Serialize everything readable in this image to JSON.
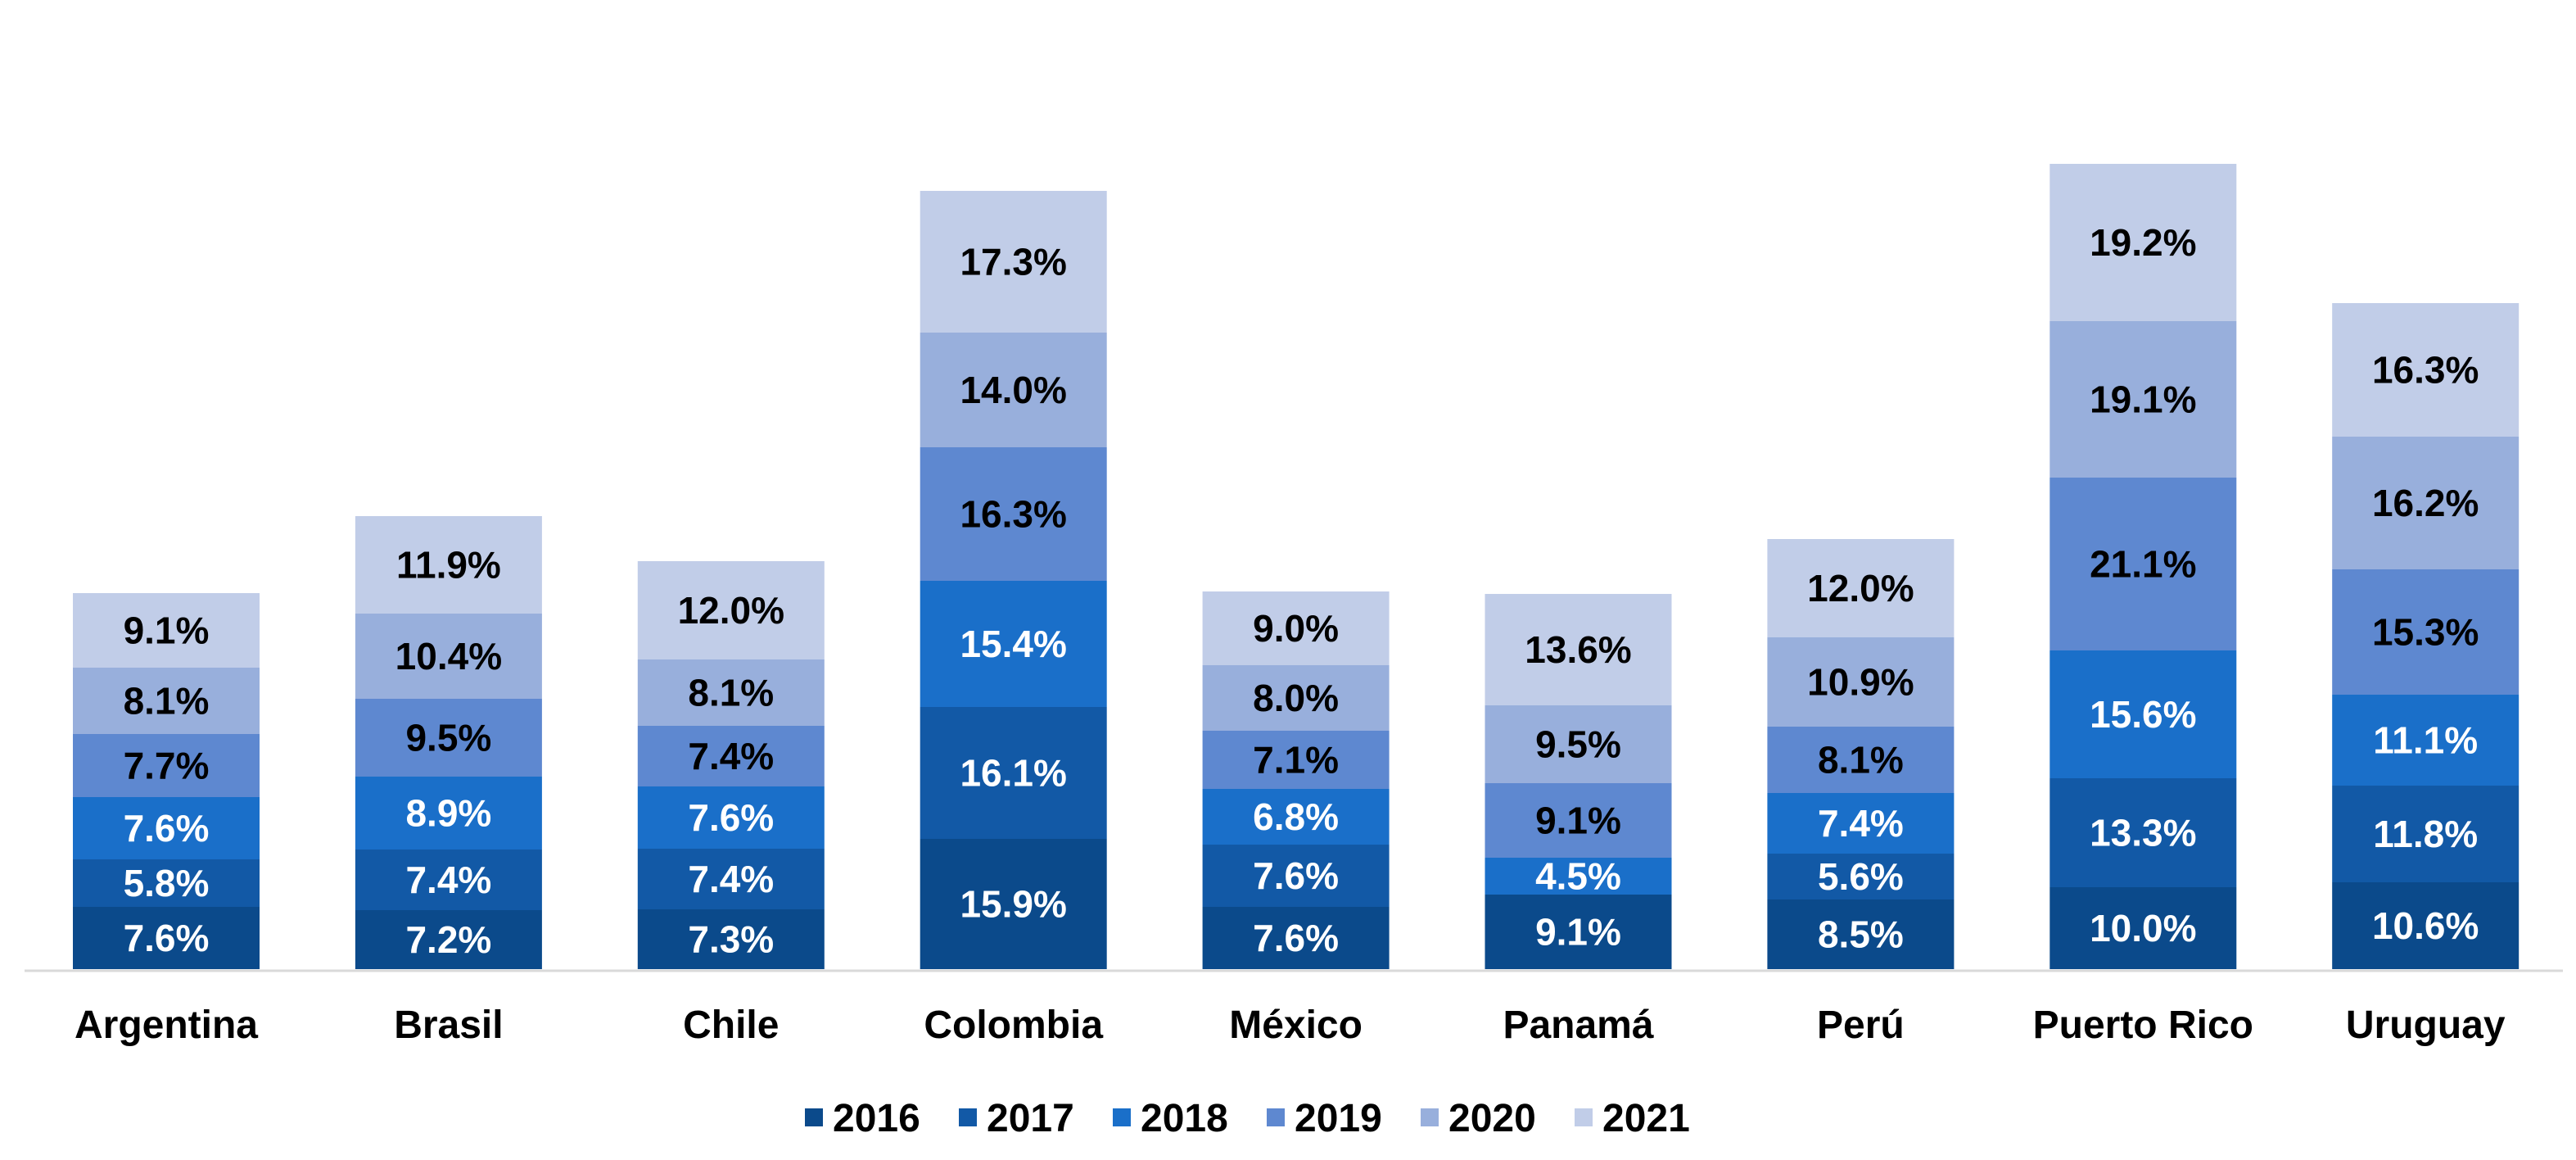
{
  "chart_data": {
    "type": "bar",
    "stacked": true,
    "title": "",
    "xlabel": "",
    "ylabel": "",
    "grid": false,
    "legend_position": "bottom",
    "value_suffix": "%",
    "categories": [
      "Argentina",
      "Brasil",
      "Chile",
      "Colombia",
      "México",
      "Panamá",
      "Perú",
      "Puerto Rico",
      "Uruguay"
    ],
    "series": [
      {
        "name": "2016",
        "color": "#0b4a8b",
        "label_color": "#ffffff",
        "values": [
          7.6,
          7.2,
          7.3,
          15.9,
          7.6,
          9.1,
          8.5,
          10.0,
          10.6
        ]
      },
      {
        "name": "2017",
        "color": "#1259a6",
        "label_color": "#ffffff",
        "values": [
          5.8,
          7.4,
          7.4,
          16.1,
          7.6,
          0,
          5.6,
          13.3,
          11.8
        ]
      },
      {
        "name": "2018",
        "color": "#1a6fc9",
        "label_color": "#ffffff",
        "values": [
          7.6,
          8.9,
          7.6,
          15.4,
          6.8,
          4.5,
          7.4,
          15.6,
          11.1
        ]
      },
      {
        "name": "2019",
        "color": "#5e88d0",
        "label_color": "#000000",
        "values": [
          7.7,
          9.5,
          7.4,
          16.3,
          7.1,
          9.1,
          8.1,
          21.1,
          15.3
        ]
      },
      {
        "name": "2020",
        "color": "#98afdc",
        "label_color": "#000000",
        "values": [
          8.1,
          10.4,
          8.1,
          14.0,
          8.0,
          9.5,
          10.9,
          19.1,
          16.2
        ]
      },
      {
        "name": "2021",
        "color": "#c1cde8",
        "label_color": "#000000",
        "values": [
          9.1,
          11.9,
          12.0,
          17.3,
          9.0,
          13.6,
          12.0,
          19.2,
          16.3
        ]
      }
    ]
  }
}
